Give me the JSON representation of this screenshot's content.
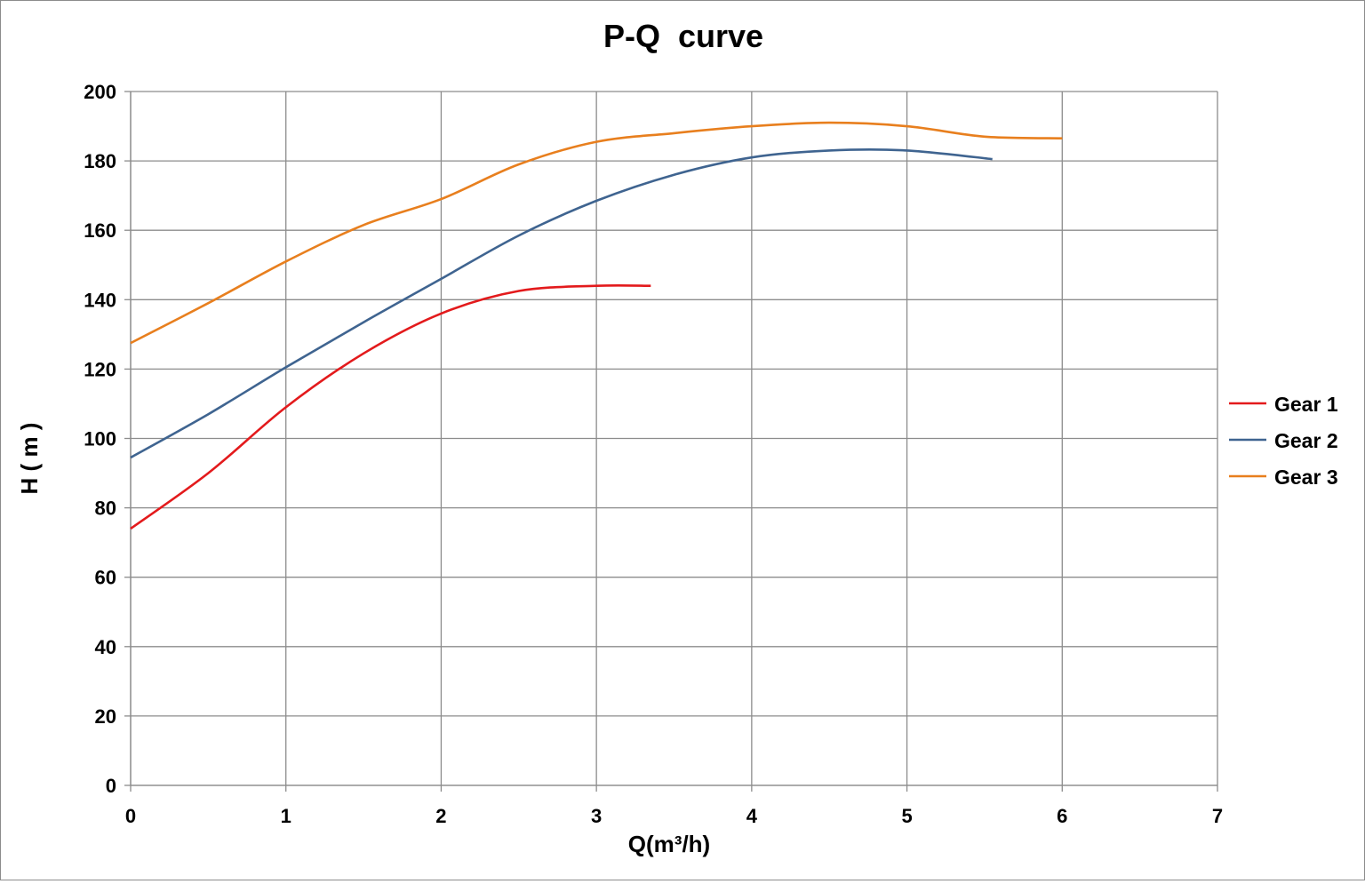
{
  "chart_data": {
    "type": "line",
    "title": "P-Q  curve",
    "xlabel": "Q(m³/h)",
    "ylabel": "H ( m )",
    "xlim": [
      0,
      7
    ],
    "ylim": [
      0,
      200
    ],
    "xticks": [
      0,
      1,
      2,
      3,
      4,
      5,
      6,
      7
    ],
    "yticks": [
      0,
      20,
      40,
      60,
      80,
      100,
      120,
      140,
      160,
      180,
      200
    ],
    "grid": true,
    "legend_position": "right",
    "series": [
      {
        "name": "Gear 1",
        "color": "#e31a1c",
        "points": [
          [
            0,
            74
          ],
          [
            0.5,
            90
          ],
          [
            1,
            109
          ],
          [
            1.5,
            124.5
          ],
          [
            2,
            136
          ],
          [
            2.5,
            142.5
          ],
          [
            3,
            144
          ],
          [
            3.35,
            144
          ]
        ]
      },
      {
        "name": "Gear 2",
        "color": "#3f6490",
        "points": [
          [
            0,
            94.5
          ],
          [
            0.5,
            107
          ],
          [
            1,
            120.5
          ],
          [
            1.5,
            133.5
          ],
          [
            2,
            146
          ],
          [
            2.5,
            158.5
          ],
          [
            3,
            168.5
          ],
          [
            3.5,
            176
          ],
          [
            4,
            181
          ],
          [
            4.5,
            183
          ],
          [
            5,
            183
          ],
          [
            5.55,
            180.5
          ]
        ]
      },
      {
        "name": "Gear 3",
        "color": "#e87f1e",
        "points": [
          [
            0,
            127.5
          ],
          [
            0.5,
            139
          ],
          [
            1,
            151
          ],
          [
            1.5,
            161.5
          ],
          [
            2,
            169
          ],
          [
            2.5,
            179
          ],
          [
            3,
            185.5
          ],
          [
            3.5,
            188
          ],
          [
            4,
            190
          ],
          [
            4.5,
            191
          ],
          [
            5,
            190
          ],
          [
            5.5,
            187
          ],
          [
            6,
            186.5
          ]
        ]
      }
    ]
  }
}
